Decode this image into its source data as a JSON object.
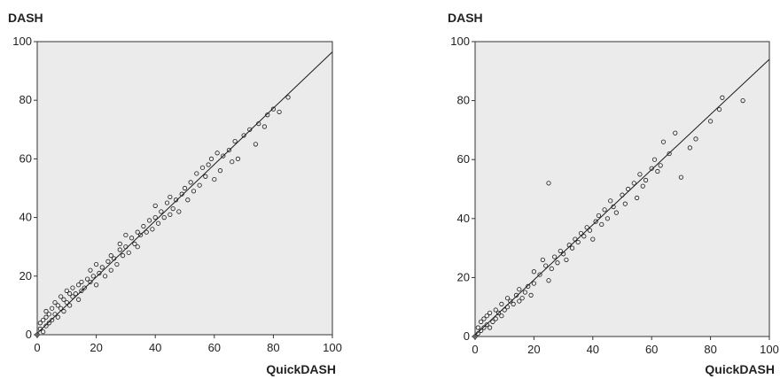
{
  "chart_data": [
    {
      "type": "scatter",
      "ylabel": "DASH",
      "xlabel": "QuickDASH",
      "xlim": [
        0,
        100
      ],
      "ylim": [
        0,
        100
      ],
      "xticks": [
        "0",
        "20",
        "40",
        "60",
        "80",
        "100"
      ],
      "yticks": [
        "0",
        "20",
        "40",
        "60",
        "80",
        "100"
      ],
      "fit_line": {
        "x": [
          0,
          100
        ],
        "y": [
          0.5,
          96.5
        ]
      },
      "grid": false,
      "x": [
        0,
        1,
        1,
        2,
        2,
        3,
        3,
        3,
        4,
        4,
        5,
        5,
        6,
        6,
        7,
        7,
        8,
        8,
        9,
        9,
        10,
        10,
        11,
        11,
        12,
        12,
        13,
        14,
        14,
        15,
        15,
        16,
        17,
        18,
        18,
        19,
        20,
        20,
        21,
        22,
        23,
        24,
        25,
        25,
        26,
        27,
        28,
        28,
        29,
        30,
        30,
        31,
        32,
        33,
        34,
        34,
        35,
        36,
        37,
        38,
        39,
        40,
        40,
        41,
        42,
        43,
        44,
        45,
        45,
        46,
        47,
        48,
        49,
        50,
        51,
        52,
        53,
        54,
        55,
        56,
        57,
        58,
        59,
        60,
        61,
        62,
        63,
        65,
        66,
        67,
        68,
        70,
        72,
        74,
        75,
        77,
        78,
        80,
        82,
        85
      ],
      "y": [
        0,
        2,
        4,
        1,
        5,
        3,
        6,
        8,
        4,
        7,
        5,
        9,
        7,
        11,
        6,
        10,
        9,
        13,
        8,
        12,
        11,
        15,
        10,
        14,
        13,
        16,
        14,
        12,
        17,
        15,
        18,
        16,
        19,
        18,
        22,
        20,
        17,
        24,
        21,
        23,
        20,
        25,
        22,
        27,
        26,
        24,
        29,
        31,
        27,
        30,
        34,
        28,
        33,
        31,
        35,
        30,
        34,
        37,
        35,
        39,
        36,
        40,
        44,
        38,
        42,
        40,
        45,
        41,
        47,
        43,
        46,
        42,
        48,
        50,
        46,
        52,
        49,
        55,
        51,
        57,
        54,
        58,
        60,
        53,
        62,
        56,
        61,
        63,
        59,
        66,
        60,
        68,
        70,
        65,
        72,
        71,
        75,
        77,
        76,
        81
      ]
    },
    {
      "type": "scatter",
      "ylabel": "DASH",
      "xlabel": "QuickDASH",
      "xlim": [
        0,
        100
      ],
      "ylim": [
        0,
        100
      ],
      "xticks": [
        "0",
        "20",
        "40",
        "60",
        "80",
        "100"
      ],
      "yticks": [
        "0",
        "20",
        "40",
        "60",
        "80",
        "100"
      ],
      "fit_line": {
        "x": [
          0,
          100
        ],
        "y": [
          0.5,
          94
        ]
      },
      "grid": false,
      "x": [
        0,
        1,
        1,
        2,
        2,
        3,
        3,
        4,
        4,
        5,
        5,
        6,
        7,
        7,
        8,
        9,
        9,
        10,
        11,
        11,
        12,
        13,
        14,
        15,
        15,
        16,
        17,
        18,
        19,
        20,
        20,
        22,
        23,
        24,
        25,
        25,
        26,
        27,
        28,
        29,
        30,
        31,
        32,
        33,
        34,
        35,
        36,
        37,
        38,
        39,
        40,
        41,
        42,
        43,
        44,
        45,
        46,
        47,
        48,
        50,
        51,
        52,
        54,
        55,
        56,
        57,
        58,
        60,
        61,
        62,
        63,
        64,
        66,
        68,
        70,
        73,
        75,
        80,
        83,
        84,
        91
      ],
      "y": [
        0,
        1,
        3,
        2,
        5,
        3,
        6,
        4,
        7,
        3,
        8,
        5,
        6,
        9,
        8,
        7,
        11,
        9,
        10,
        13,
        12,
        11,
        14,
        12,
        16,
        13,
        15,
        17,
        14,
        18,
        22,
        21,
        26,
        24,
        19,
        52,
        23,
        27,
        25,
        29,
        28,
        26,
        31,
        30,
        33,
        32,
        35,
        34,
        37,
        36,
        33,
        39,
        41,
        38,
        43,
        40,
        46,
        44,
        42,
        48,
        45,
        50,
        52,
        47,
        55,
        51,
        53,
        57,
        60,
        56,
        58,
        66,
        62,
        69,
        54,
        64,
        67,
        73,
        77,
        81,
        80
      ]
    }
  ]
}
